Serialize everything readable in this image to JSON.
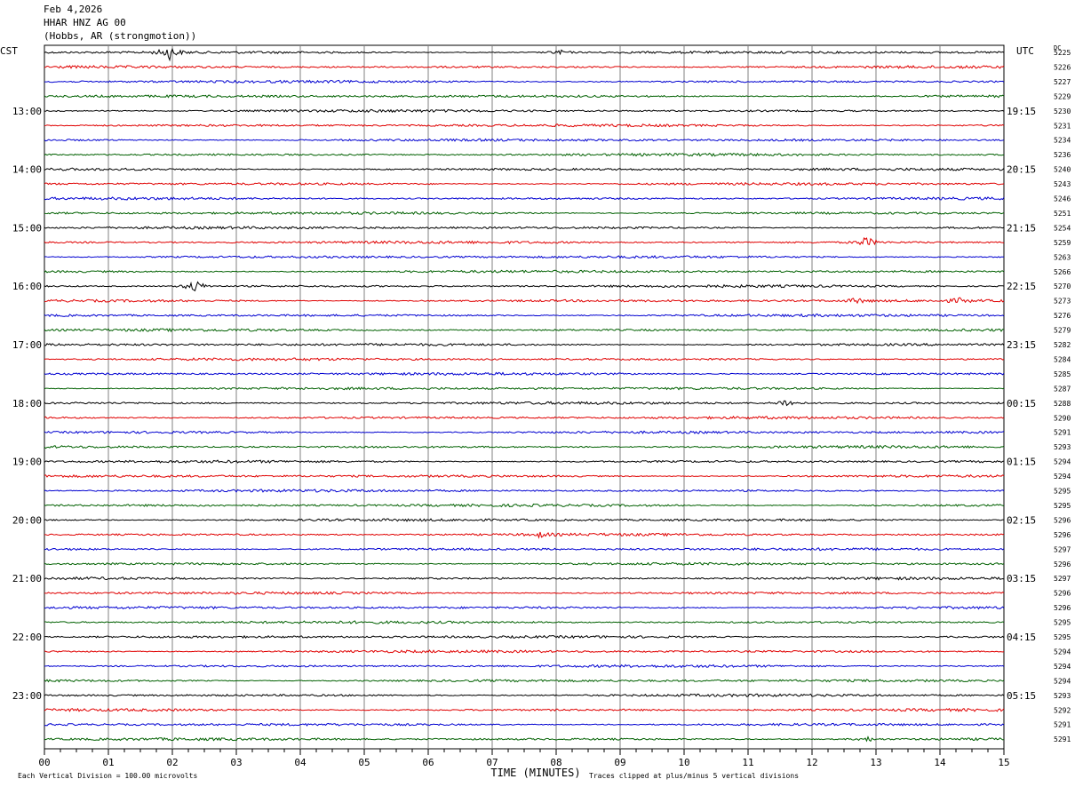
{
  "header": {
    "date": "Feb 4,2026",
    "channel": "HHAR HNZ AG 00",
    "location": "(Hobbs, AR (strongmotion))"
  },
  "labels": {
    "left_tz": "CST",
    "right_tz": "UTC",
    "dc": "DC"
  },
  "chart_data": {
    "type": "line",
    "title": "Feb 4,2026 HHAR HNZ AG 00 (Hobbs, AR (strongmotion))",
    "xlabel": "TIME (MINUTES)",
    "xlim": [
      0,
      15
    ],
    "x_ticks": [
      "00",
      "01",
      "02",
      "03",
      "04",
      "05",
      "06",
      "07",
      "08",
      "09",
      "10",
      "11",
      "12",
      "13",
      "14",
      "15"
    ],
    "grid": true,
    "trace_colors": [
      "#000000",
      "#e00000",
      "#0000d0",
      "#006000"
    ],
    "left_time_labels": [
      {
        "trace": 4,
        "label": "13:00"
      },
      {
        "trace": 8,
        "label": "14:00"
      },
      {
        "trace": 12,
        "label": "15:00"
      },
      {
        "trace": 16,
        "label": "16:00"
      },
      {
        "trace": 20,
        "label": "17:00"
      },
      {
        "trace": 24,
        "label": "18:00"
      },
      {
        "trace": 28,
        "label": "19:00"
      },
      {
        "trace": 32,
        "label": "20:00"
      },
      {
        "trace": 36,
        "label": "21:00"
      },
      {
        "trace": 40,
        "label": "22:00"
      },
      {
        "trace": 44,
        "label": "23:00"
      }
    ],
    "right_time_labels": [
      {
        "trace": 4,
        "label": "19:15"
      },
      {
        "trace": 8,
        "label": "20:15"
      },
      {
        "trace": 12,
        "label": "21:15"
      },
      {
        "trace": 16,
        "label": "22:15"
      },
      {
        "trace": 20,
        "label": "23:15"
      },
      {
        "trace": 24,
        "label": "00:15"
      },
      {
        "trace": 28,
        "label": "01:15"
      },
      {
        "trace": 32,
        "label": "02:15"
      },
      {
        "trace": 36,
        "label": "03:15"
      },
      {
        "trace": 40,
        "label": "04:15"
      },
      {
        "trace": 44,
        "label": "05:15"
      }
    ],
    "dc_offsets": [
      "5225",
      "5226",
      "5227",
      "5229",
      "5230",
      "5231",
      "5234",
      "5236",
      "5240",
      "5243",
      "5246",
      "5251",
      "5254",
      "5259",
      "5263",
      "5266",
      "5270",
      "5273",
      "5276",
      "5279",
      "5282",
      "5284",
      "5285",
      "5287",
      "5288",
      "5290",
      "5291",
      "5293",
      "5294",
      "5294",
      "5295",
      "5295",
      "5296",
      "5296",
      "5297",
      "5296",
      "5297",
      "5296",
      "5296",
      "5295",
      "5295",
      "5294",
      "5294",
      "5294",
      "5293",
      "5292",
      "5291",
      "5291"
    ],
    "events": [
      {
        "trace": 0,
        "minute": 1.95,
        "amplitude": 1.6
      },
      {
        "trace": 0,
        "minute": 8.05,
        "amplitude": 0.6
      },
      {
        "trace": 13,
        "minute": 12.85,
        "amplitude": 1.2
      },
      {
        "trace": 16,
        "minute": 2.35,
        "amplitude": 1.5
      },
      {
        "trace": 17,
        "minute": 12.7,
        "amplitude": 0.6
      },
      {
        "trace": 17,
        "minute": 14.3,
        "amplitude": 0.5
      },
      {
        "trace": 24,
        "minute": 11.6,
        "amplitude": 1.0
      },
      {
        "trace": 33,
        "minute": 7.75,
        "amplitude": 0.5
      },
      {
        "trace": 47,
        "minute": 12.85,
        "amplitude": 0.6
      }
    ],
    "footer_left": "Each Vertical Division =  100.00 microvolts",
    "footer_right": "Traces clipped at plus/minus 5 vertical divisions"
  }
}
